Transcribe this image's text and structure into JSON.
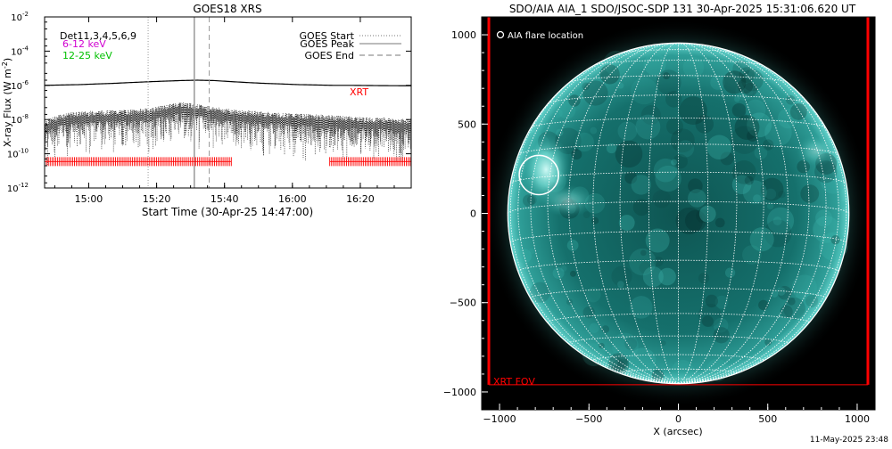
{
  "goes_panel": {
    "title": "GOES18 XRS",
    "ylabel": "X-ray Flux (W m",
    "ylabel_sup": "-2",
    "ylabel_close": ")",
    "xlabel": "Start Time (30-Apr-25 14:47:00)",
    "legend_left": [
      {
        "text": "Det11,3,4,5,6,9",
        "color": "#000000"
      },
      {
        "text": "6-12 keV",
        "color": "#d000d0"
      },
      {
        "text": "12-25 keV",
        "color": "#00c000"
      }
    ],
    "legend_right": [
      {
        "text": "GOES Start",
        "style": "dotted"
      },
      {
        "text": "GOES Peak",
        "style": "solid"
      },
      {
        "text": "GOES End",
        "style": "dashed"
      }
    ],
    "xrt_label": "XRT",
    "colors": {
      "xrt": "#ff0000",
      "markers": "#999999"
    }
  },
  "aia_panel": {
    "title": "SDO/AIA AIA_1 SDO/JSOC-SDP 131 30-Apr-2025 15:31:06.620 UT",
    "legend": "AIA flare location",
    "xlabel": "X (arcsec)",
    "fov_label": "XRT FOV",
    "footer": "11-May-2025 23:48",
    "colors": {
      "disk": "#17716d",
      "fov": "#ff0000"
    }
  },
  "chart_data": [
    {
      "type": "line",
      "title": "GOES18 XRS",
      "xlabel": "Start Time (30-Apr-25 14:47:00)",
      "ylabel": "X-ray Flux (W m^-2)",
      "x_unit": "minutes after 14:47:00",
      "xlim": [
        0,
        108
      ],
      "ylim": [
        1e-12,
        0.01
      ],
      "yscale": "log",
      "x_ticks": [
        {
          "value": 13,
          "label": "15:00"
        },
        {
          "value": 33,
          "label": "15:20"
        },
        {
          "value": 53,
          "label": "15:40"
        },
        {
          "value": 73,
          "label": "16:00"
        },
        {
          "value": 93,
          "label": "16:20"
        }
      ],
      "y_ticks": [
        {
          "value": 1e-12,
          "label": "10",
          "exp": "-12"
        },
        {
          "value": 1e-10,
          "label": "10",
          "exp": "-10"
        },
        {
          "value": 1e-08,
          "label": "10",
          "exp": "-8"
        },
        {
          "value": 1e-06,
          "label": "10",
          "exp": "-6"
        },
        {
          "value": 0.0001,
          "label": "10",
          "exp": "-4"
        },
        {
          "value": 0.01,
          "label": "10",
          "exp": "-2"
        }
      ],
      "series": [
        {
          "x": [
            0,
            5,
            10,
            15,
            20,
            25,
            30,
            35,
            40,
            45,
            50,
            55,
            60,
            65,
            70,
            75,
            80,
            85,
            90,
            95,
            100,
            105,
            108
          ],
          "y": [
            1e-06,
            1.05e-06,
            1.1e-06,
            1.2e-06,
            1.3e-06,
            1.45e-06,
            1.6e-06,
            1.75e-06,
            1.9e-06,
            2e-06,
            1.9e-06,
            1.65e-06,
            1.45e-06,
            1.3e-06,
            1.2e-06,
            1.1e-06,
            1.05e-06,
            1e-06,
            1e-06,
            9.8e-07,
            9.6e-07,
            9.5e-07,
            9.5e-07
          ]
        },
        {
          "x": [
            0,
            5,
            10,
            15,
            20,
            25,
            30,
            35,
            40,
            45,
            50,
            55,
            60,
            65,
            70,
            75,
            80,
            85,
            90,
            95,
            100,
            105,
            108
          ],
          "y": [
            4e-09,
            1e-08,
            1.3e-08,
            1.5e-08,
            1.6e-08,
            1.7e-08,
            2e-08,
            3e-08,
            5e-08,
            3.5e-08,
            2.5e-08,
            1.8e-08,
            1.5e-08,
            1.3e-08,
            1.1e-08,
            1e-08,
            9e-09,
            8e-09,
            7e-09,
            6e-09,
            6e-09,
            5e-09,
            5e-09
          ]
        }
      ],
      "events": {
        "goes_start": 30.5,
        "goes_peak": 44.1,
        "goes_end": 48.5
      },
      "xrt_coverage": [
        [
          0,
          55
        ],
        [
          84,
          108
        ]
      ],
      "xrt_level": 3.5e-11
    },
    {
      "type": "image",
      "title": "SDO/AIA AIA_1 SDO/JSOC-SDP 131 30-Apr-2025 15:31:06.620 UT",
      "xlabel": "X (arcsec)",
      "xlim": [
        -1100,
        1100
      ],
      "ylim": [
        -1100,
        1100
      ],
      "x_ticks": [
        -1000,
        -500,
        0,
        500,
        1000
      ],
      "y_ticks": [
        -1000,
        -500,
        0,
        500,
        1000
      ],
      "x_tick_labels": [
        "−1000",
        "−500",
        "0",
        "500",
        "1000"
      ],
      "y_tick_labels": [
        "−1000",
        "−500",
        "0",
        "500",
        "1000"
      ],
      "solar_radius": 954,
      "grid_step_deg": 10,
      "flare_location": {
        "x": -780,
        "y": 215,
        "r": 110
      },
      "xrt_fov": {
        "x0": -1060,
        "x1": 1060,
        "y0": -960,
        "y1": 1100
      }
    }
  ]
}
